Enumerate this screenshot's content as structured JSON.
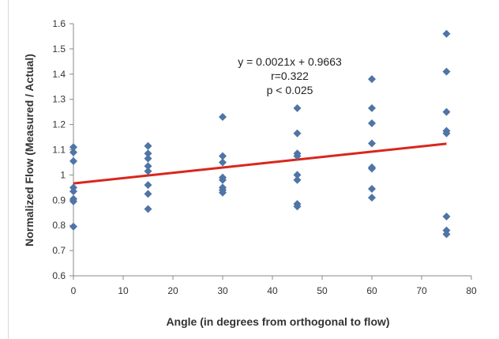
{
  "chart_data": {
    "type": "scatter",
    "title": "",
    "xlabel": "Angle (in degrees from orthogonal to flow)",
    "ylabel": "Normalized Flow (Measured / Actual)",
    "xlim": [
      0,
      80
    ],
    "ylim": [
      0.6,
      1.6
    ],
    "x_ticks": [
      "0",
      "10",
      "20",
      "30",
      "40",
      "50",
      "60",
      "70",
      "80"
    ],
    "y_ticks": [
      "0.6",
      "0.7",
      "0.8",
      "0.9",
      "1",
      "1.1",
      "1.2",
      "1.3",
      "1.4",
      "1.5",
      "1.6"
    ],
    "grid": false,
    "legend": "none",
    "marker": "diamond",
    "colors": {
      "points": "#4f74a6",
      "trendline": "#d9261c",
      "axis": "#888888"
    },
    "points": [
      {
        "x": 0,
        "y": 1.11
      },
      {
        "x": 0,
        "y": 1.09
      },
      {
        "x": 0,
        "y": 1.055
      },
      {
        "x": 0,
        "y": 0.95
      },
      {
        "x": 0,
        "y": 0.935
      },
      {
        "x": 0,
        "y": 0.905
      },
      {
        "x": 0,
        "y": 0.895
      },
      {
        "x": 0,
        "y": 0.795
      },
      {
        "x": 15,
        "y": 1.115
      },
      {
        "x": 15,
        "y": 1.085
      },
      {
        "x": 15,
        "y": 1.065
      },
      {
        "x": 15,
        "y": 1.035
      },
      {
        "x": 15,
        "y": 1.015
      },
      {
        "x": 15,
        "y": 0.96
      },
      {
        "x": 15,
        "y": 0.925
      },
      {
        "x": 15,
        "y": 0.865
      },
      {
        "x": 30,
        "y": 1.23
      },
      {
        "x": 30,
        "y": 1.075
      },
      {
        "x": 30,
        "y": 1.05
      },
      {
        "x": 30,
        "y": 0.99
      },
      {
        "x": 30,
        "y": 0.98
      },
      {
        "x": 30,
        "y": 0.95
      },
      {
        "x": 30,
        "y": 0.94
      },
      {
        "x": 30,
        "y": 0.93
      },
      {
        "x": 45,
        "y": 1.265
      },
      {
        "x": 45,
        "y": 1.165
      },
      {
        "x": 45,
        "y": 1.085
      },
      {
        "x": 45,
        "y": 1.075
      },
      {
        "x": 45,
        "y": 1.0
      },
      {
        "x": 45,
        "y": 0.98
      },
      {
        "x": 45,
        "y": 0.885
      },
      {
        "x": 45,
        "y": 0.875
      },
      {
        "x": 60,
        "y": 1.38
      },
      {
        "x": 60,
        "y": 1.265
      },
      {
        "x": 60,
        "y": 1.205
      },
      {
        "x": 60,
        "y": 1.125
      },
      {
        "x": 60,
        "y": 1.03
      },
      {
        "x": 60,
        "y": 1.025
      },
      {
        "x": 60,
        "y": 0.945
      },
      {
        "x": 60,
        "y": 0.91
      },
      {
        "x": 75,
        "y": 1.56
      },
      {
        "x": 75,
        "y": 1.41
      },
      {
        "x": 75,
        "y": 1.25
      },
      {
        "x": 75,
        "y": 1.175
      },
      {
        "x": 75,
        "y": 1.165
      },
      {
        "x": 75,
        "y": 0.835
      },
      {
        "x": 75,
        "y": 0.78
      },
      {
        "x": 75,
        "y": 0.765
      }
    ],
    "trendline": {
      "x": [
        0,
        75
      ],
      "slope": 0.0021,
      "intercept": 0.9663
    },
    "annotations": [
      "y = 0.0021x + 0.9663",
      "r=0.322",
      "p < 0.025"
    ]
  }
}
